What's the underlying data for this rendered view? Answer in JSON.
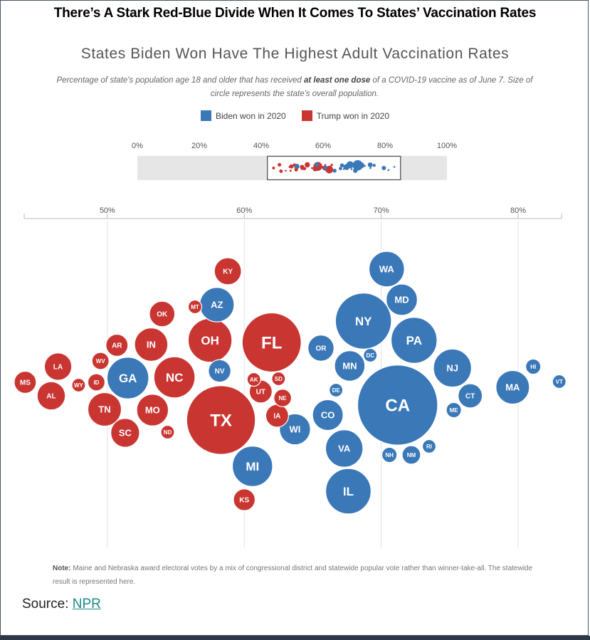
{
  "headline": "There’s A Stark Red-Blue Divide When It Comes To States’ Vaccination Rates",
  "chart_title": "States Biden Won Have The Highest Adult Vaccination Rates",
  "subtitle": {
    "before": "Percentage of state's population age 18 and older that has received ",
    "bold": "at least one dose",
    "after": " of a COVID-19 vaccine as of June 7. Size of circle represents the state's overall population."
  },
  "legend": [
    {
      "label": "Biden won in 2020",
      "color": "#3a78b8"
    },
    {
      "label": "Trump won in 2020",
      "color": "#c93632"
    }
  ],
  "note": {
    "label": "Note:",
    "text": " Maine and Nebraska award electoral votes by a mix of congressional district and statewide popular vote rather than winner-take-all. The statewide result is represented here."
  },
  "source": {
    "label": "Source: ",
    "link": "NPR"
  },
  "chart_data": {
    "type": "scatter",
    "overview_axis": {
      "ticks": [
        "0%",
        "20%",
        "40%",
        "60%",
        "80%",
        "100%"
      ],
      "range": [
        0,
        100
      ],
      "selected_range": [
        42,
        85
      ]
    },
    "main_axis": {
      "ticks": [
        "50%",
        "60%",
        "70%",
        "80%"
      ],
      "range": [
        43.2,
        84
      ]
    },
    "colors": {
      "biden": "#3a78b8",
      "trump": "#c93632"
    },
    "series": [
      {
        "name": "Biden won in 2020",
        "party": "biden",
        "points": [
          {
            "state": "WA",
            "x": 70.4,
            "pop": 7.7
          },
          {
            "state": "MD",
            "x": 71.5,
            "pop": 6.0
          },
          {
            "state": "NY",
            "x": 68.7,
            "pop": 19.3
          },
          {
            "state": "PA",
            "x": 72.4,
            "pop": 13.0
          },
          {
            "state": "OR",
            "x": 65.6,
            "pop": 4.2
          },
          {
            "state": "DC",
            "x": 69.2,
            "pop": 0.7
          },
          {
            "state": "MN",
            "x": 67.7,
            "pop": 5.7
          },
          {
            "state": "NJ",
            "x": 75.2,
            "pop": 8.9
          },
          {
            "state": "HI",
            "x": 81.1,
            "pop": 1.4
          },
          {
            "state": "VT",
            "x": 83.0,
            "pop": 0.6
          },
          {
            "state": "MA",
            "x": 79.6,
            "pop": 6.9
          },
          {
            "state": "DE",
            "x": 66.7,
            "pop": 1.0
          },
          {
            "state": "CA",
            "x": 71.2,
            "pop": 39.5
          },
          {
            "state": "CT",
            "x": 76.5,
            "pop": 3.6
          },
          {
            "state": "ME",
            "x": 75.3,
            "pop": 1.4
          },
          {
            "state": "CO",
            "x": 66.1,
            "pop": 5.8
          },
          {
            "state": "NV",
            "x": 58.2,
            "pop": 3.1
          },
          {
            "state": "AZ",
            "x": 58.0,
            "pop": 7.3
          },
          {
            "state": "GA",
            "x": 51.5,
            "pop": 10.7
          },
          {
            "state": "WI",
            "x": 63.7,
            "pop": 5.9
          },
          {
            "state": "RI",
            "x": 73.5,
            "pop": 1.1
          },
          {
            "state": "NM",
            "x": 72.2,
            "pop": 2.1
          },
          {
            "state": "NH",
            "x": 70.6,
            "pop": 1.4
          },
          {
            "state": "VA",
            "x": 67.3,
            "pop": 8.6
          },
          {
            "state": "MI",
            "x": 60.6,
            "pop": 10.0
          },
          {
            "state": "IL",
            "x": 67.6,
            "pop": 12.7
          }
        ]
      },
      {
        "name": "Trump won in 2020",
        "party": "trump",
        "points": [
          {
            "state": "KY",
            "x": 58.8,
            "pop": 4.5
          },
          {
            "state": "MT",
            "x": 56.4,
            "pop": 1.1
          },
          {
            "state": "OK",
            "x": 54.0,
            "pop": 4.0
          },
          {
            "state": "OH",
            "x": 57.5,
            "pop": 11.8
          },
          {
            "state": "FL",
            "x": 62.0,
            "pop": 21.5
          },
          {
            "state": "AR",
            "x": 50.7,
            "pop": 3.0
          },
          {
            "state": "IN",
            "x": 53.2,
            "pop": 6.8
          },
          {
            "state": "WV",
            "x": 49.5,
            "pop": 1.8
          },
          {
            "state": "LA",
            "x": 46.4,
            "pop": 4.6
          },
          {
            "state": "NC",
            "x": 54.9,
            "pop": 10.4
          },
          {
            "state": "SD",
            "x": 62.5,
            "pop": 0.9
          },
          {
            "state": "AK",
            "x": 60.7,
            "pop": 0.7
          },
          {
            "state": "MS",
            "x": 44.0,
            "pop": 3.0
          },
          {
            "state": "WY",
            "x": 47.9,
            "pop": 0.6
          },
          {
            "state": "ID",
            "x": 49.2,
            "pop": 1.8
          },
          {
            "state": "UT",
            "x": 61.2,
            "pop": 3.2
          },
          {
            "state": "AL",
            "x": 45.9,
            "pop": 4.9
          },
          {
            "state": "NE",
            "x": 62.8,
            "pop": 1.9
          },
          {
            "state": "TN",
            "x": 49.8,
            "pop": 6.9
          },
          {
            "state": "MO",
            "x": 53.3,
            "pop": 6.2
          },
          {
            "state": "TX",
            "x": 58.3,
            "pop": 29.1
          },
          {
            "state": "IA",
            "x": 62.4,
            "pop": 3.2
          },
          {
            "state": "SC",
            "x": 51.3,
            "pop": 5.1
          },
          {
            "state": "ND",
            "x": 54.4,
            "pop": 0.8
          },
          {
            "state": "KS",
            "x": 60.0,
            "pop": 2.9
          }
        ]
      }
    ]
  }
}
